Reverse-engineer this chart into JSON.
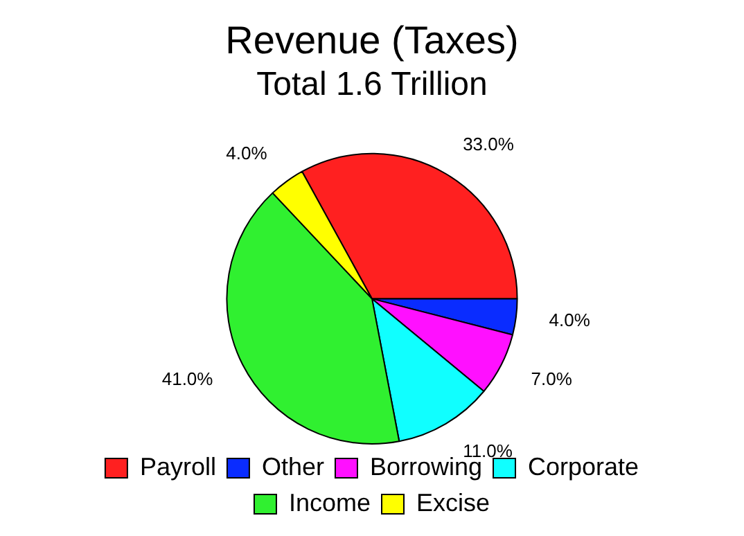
{
  "chart_data": {
    "type": "pie",
    "title": "Revenue (Taxes)",
    "subtitle": "Total 1.6 Trillion",
    "categories": [
      "Payroll",
      "Other",
      "Borrowing",
      "Corporate",
      "Income",
      "Excise"
    ],
    "values": [
      33.0,
      4.0,
      7.0,
      11.0,
      41.0,
      4.0
    ],
    "colors": [
      "#ff2020",
      "#0a2cff",
      "#ff10ff",
      "#10ffff",
      "#30f030",
      "#ffff00"
    ],
    "value_labels": [
      "33.0%",
      "4.0%",
      "7.0%",
      "11.0%",
      "41.0%",
      "4.0%"
    ],
    "legend": "bottom"
  }
}
